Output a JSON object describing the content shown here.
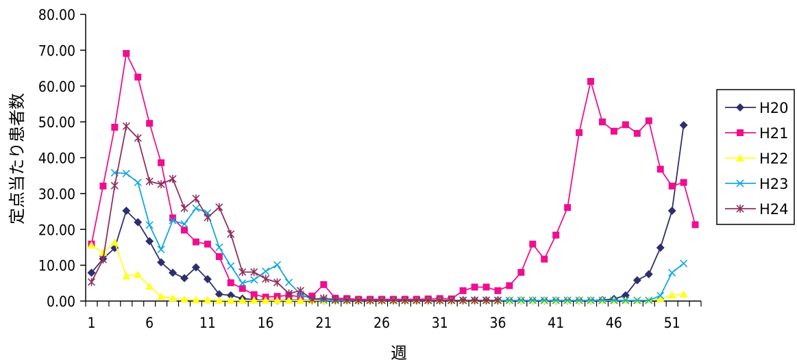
{
  "chart_data": {
    "type": "line",
    "xlabel": "週",
    "ylabel": "定点当たり患者数",
    "ylim": [
      0,
      80
    ],
    "xlim": [
      1,
      53
    ],
    "y_ticks": [
      "0.00",
      "10.00",
      "20.00",
      "30.00",
      "40.00",
      "50.00",
      "60.00",
      "70.00",
      "80.00"
    ],
    "x_ticks": [
      "1",
      "6",
      "11",
      "16",
      "21",
      "26",
      "31",
      "36",
      "41",
      "46",
      "51"
    ],
    "legend_position": "right",
    "x": [
      1,
      2,
      3,
      4,
      5,
      6,
      7,
      8,
      9,
      10,
      11,
      12,
      13,
      14,
      15,
      16,
      17,
      18,
      19,
      20,
      21,
      22,
      23,
      24,
      25,
      26,
      27,
      28,
      29,
      30,
      31,
      32,
      33,
      34,
      35,
      36,
      37,
      38,
      39,
      40,
      41,
      42,
      43,
      44,
      45,
      46,
      47,
      48,
      49,
      50,
      51,
      52,
      53
    ],
    "series": [
      {
        "name": "H20",
        "color": "#2e2e6e",
        "marker": "diamond",
        "values": [
          7.9,
          11.8,
          14.8,
          25.2,
          22.0,
          16.7,
          10.8,
          7.9,
          6.4,
          9.4,
          6.1,
          1.9,
          1.6,
          0.7,
          0.4,
          0.3,
          0.2,
          0.3,
          0.3,
          0.2,
          0.2,
          0.2,
          0.2,
          0.2,
          0.2,
          0.2,
          0.2,
          0.2,
          0.2,
          0.2,
          0.2,
          0.2,
          0.2,
          0.2,
          0.2,
          0.2,
          0.2,
          0.2,
          0.2,
          0.2,
          0.2,
          0.2,
          0.2,
          0.2,
          0.3,
          0.6,
          1.6,
          5.8,
          7.5,
          14.9,
          25.2,
          49.1,
          null
        ]
      },
      {
        "name": "H21",
        "color": "#ee0f8f",
        "marker": "square",
        "values": [
          15.9,
          32.1,
          48.5,
          69.1,
          62.5,
          49.6,
          38.6,
          23.2,
          19.8,
          16.5,
          15.9,
          12.4,
          5.1,
          3.5,
          1.8,
          1.1,
          1.3,
          1.6,
          1.2,
          1.4,
          4.6,
          0.8,
          0.7,
          0.5,
          0.5,
          0.5,
          0.5,
          0.5,
          0.5,
          0.6,
          0.7,
          0.6,
          2.9,
          3.9,
          3.9,
          2.9,
          4.3,
          8.0,
          15.9,
          11.7,
          18.4,
          26.1,
          47.0,
          61.3,
          50.0,
          47.4,
          49.2,
          46.8,
          50.3,
          36.8,
          32.1,
          33.1,
          21.3
        ]
      },
      {
        "name": "H22",
        "color": "#ffff22",
        "marker": "triangle",
        "values": [
          15.6,
          13.5,
          16.4,
          7.0,
          7.4,
          4.1,
          1.3,
          0.8,
          0.5,
          0.3,
          0.3,
          0.2,
          0.2,
          0.2,
          0.2,
          0.2,
          0.2,
          0.2,
          0.2,
          0.2,
          0.2,
          0.2,
          0.2,
          0.2,
          0.2,
          0.2,
          0.2,
          0.2,
          0.2,
          0.2,
          0.2,
          0.2,
          0.2,
          0.2,
          0.2,
          0.2,
          0.2,
          0.2,
          0.2,
          0.2,
          0.2,
          0.2,
          0.2,
          0.2,
          0.2,
          0.2,
          0.2,
          0.2,
          0.3,
          0.6,
          1.7,
          1.9,
          null
        ]
      },
      {
        "name": "H23",
        "color": "#10a8e0",
        "marker": "x",
        "values": [
          null,
          null,
          35.8,
          35.6,
          33.1,
          21.2,
          14.4,
          22.5,
          21.5,
          25.9,
          24.6,
          15.0,
          9.8,
          5.0,
          5.9,
          8.3,
          10.1,
          5.2,
          1.9,
          0.5,
          0.3,
          0.2,
          0.2,
          0.2,
          0.2,
          0.2,
          0.2,
          0.2,
          0.2,
          0.2,
          0.2,
          0.2,
          0.2,
          0.2,
          0.2,
          0.2,
          0.2,
          0.2,
          0.2,
          0.2,
          0.2,
          0.2,
          0.2,
          0.2,
          0.2,
          0.2,
          0.2,
          0.2,
          0.2,
          1.5,
          7.9,
          10.5,
          null
        ]
      },
      {
        "name": "H24",
        "color": "#8e2e5e",
        "marker": "asterisk",
        "values": [
          5.3,
          11.6,
          32.2,
          48.8,
          45.5,
          33.4,
          32.6,
          34.1,
          25.9,
          28.6,
          23.3,
          26.2,
          18.7,
          8.1,
          8.1,
          6.2,
          5.2,
          2.1,
          2.9,
          0.5,
          0.8,
          0.4,
          0.3,
          0.2,
          0.2,
          0.2,
          0.2,
          0.2,
          0.2,
          0.2,
          0.2,
          0.2,
          0.2,
          0.2,
          0.2,
          0.2,
          null,
          null,
          null,
          null,
          null,
          null,
          null,
          null,
          null,
          null,
          null,
          null,
          null,
          null,
          null,
          null,
          null
        ]
      }
    ]
  }
}
